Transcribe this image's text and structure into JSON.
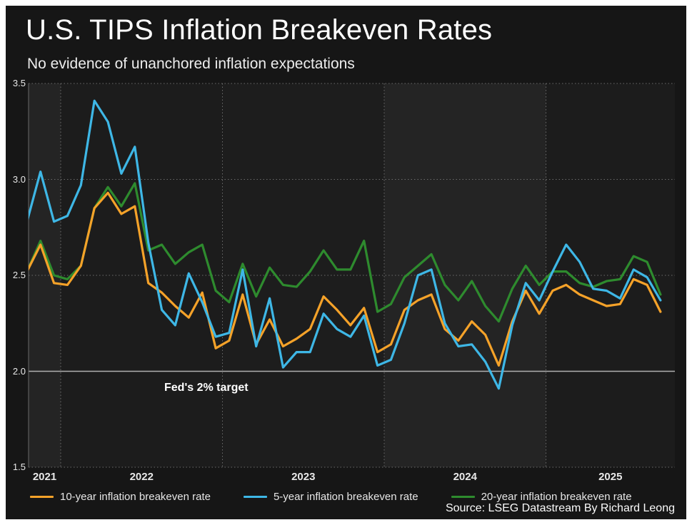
{
  "header": {
    "title": "U.S. TIPS Inflation Breakeven Rates",
    "subtitle": "No evidence of unanchored inflation expectations"
  },
  "annotation": {
    "target_label": "Fed's 2% target"
  },
  "source_line": "Source: LSEG Datastream By Richard Leong",
  "colors": {
    "background_outer": "#ffffff",
    "background_panel": "#161616",
    "plot_band_light": "#242424",
    "plot_band_dark": "#1c1c1c",
    "grid": "#7a7a7a",
    "target_line": "#b0b0b0",
    "text": "#ffffff",
    "series_10yr": "#F5A229",
    "series_5yr": "#3EB7E6",
    "series_20yr": "#2E8B2E"
  },
  "chart_data": {
    "type": "line",
    "title": "U.S. TIPS Inflation Breakeven Rates",
    "subtitle": "No evidence of unanchored inflation expectations",
    "xlabel": "",
    "ylabel": "",
    "ylim": [
      1.5,
      3.5
    ],
    "ytick_labels": [
      "3.5",
      "3.0",
      "2.5",
      "2.0",
      "1.5"
    ],
    "yticks": [
      3.5,
      3.0,
      2.5,
      2.0,
      1.5
    ],
    "xticks": [
      2021,
      2022,
      2023,
      2024,
      2025
    ],
    "grid": "dotted",
    "legend_position": "bottom",
    "target_line": {
      "value": 2.0,
      "label": "Fed's 2% target"
    },
    "x_months": [
      "2021-10",
      "2021-11",
      "2021-12",
      "2022-01",
      "2022-02",
      "2022-03",
      "2022-04",
      "2022-05",
      "2022-06",
      "2022-07",
      "2022-08",
      "2022-09",
      "2022-10",
      "2022-11",
      "2022-12",
      "2023-01",
      "2023-02",
      "2023-03",
      "2023-04",
      "2023-05",
      "2023-06",
      "2023-07",
      "2023-08",
      "2023-09",
      "2023-10",
      "2023-11",
      "2023-12",
      "2024-01",
      "2024-02",
      "2024-03",
      "2024-04",
      "2024-05",
      "2024-06",
      "2024-07",
      "2024-08",
      "2024-09",
      "2024-10",
      "2024-11",
      "2024-12",
      "2025-01",
      "2025-02",
      "2025-03",
      "2025-04",
      "2025-05",
      "2025-06",
      "2025-07",
      "2025-08",
      "2025-09"
    ],
    "series": [
      {
        "name": "10-year inflation breakeven rate",
        "color": "#F5A229",
        "values": [
          2.52,
          2.66,
          2.46,
          2.45,
          2.55,
          2.85,
          2.93,
          2.82,
          2.86,
          2.46,
          2.41,
          2.34,
          2.28,
          2.41,
          2.12,
          2.16,
          2.4,
          2.14,
          2.27,
          2.13,
          2.17,
          2.22,
          2.39,
          2.32,
          2.24,
          2.33,
          2.1,
          2.14,
          2.32,
          2.37,
          2.4,
          2.22,
          2.16,
          2.26,
          2.19,
          2.03,
          2.26,
          2.42,
          2.3,
          2.42,
          2.45,
          2.4,
          2.37,
          2.34,
          2.35,
          2.48,
          2.45,
          2.31
        ]
      },
      {
        "name": "5-year inflation breakeven rate",
        "color": "#3EB7E6",
        "values": [
          2.78,
          3.04,
          2.78,
          2.81,
          2.97,
          3.41,
          3.3,
          3.03,
          3.17,
          2.67,
          2.32,
          2.24,
          2.51,
          2.36,
          2.18,
          2.2,
          2.53,
          2.13,
          2.38,
          2.02,
          2.1,
          2.1,
          2.3,
          2.22,
          2.18,
          2.29,
          2.03,
          2.06,
          2.25,
          2.5,
          2.53,
          2.25,
          2.13,
          2.14,
          2.05,
          1.91,
          2.24,
          2.46,
          2.37,
          2.52,
          2.66,
          2.57,
          2.43,
          2.42,
          2.38,
          2.53,
          2.49,
          2.37
        ]
      },
      {
        "name": "20-year inflation breakeven rate",
        "color": "#2E8B2E",
        "values": [
          2.52,
          2.68,
          2.5,
          2.48,
          2.55,
          2.85,
          2.96,
          2.86,
          2.98,
          2.63,
          2.66,
          2.56,
          2.62,
          2.66,
          2.42,
          2.36,
          2.56,
          2.39,
          2.54,
          2.45,
          2.44,
          2.52,
          2.63,
          2.53,
          2.53,
          2.68,
          2.31,
          2.35,
          2.49,
          2.55,
          2.61,
          2.45,
          2.37,
          2.47,
          2.34,
          2.26,
          2.43,
          2.55,
          2.45,
          2.52,
          2.52,
          2.46,
          2.44,
          2.47,
          2.48,
          2.6,
          2.57,
          2.4
        ]
      }
    ]
  }
}
